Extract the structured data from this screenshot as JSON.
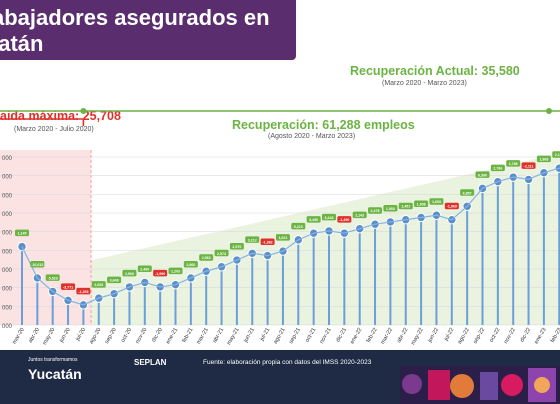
{
  "header": {
    "title_line1": "abajadores asegurados en",
    "title_line2": "catán"
  },
  "annotations": {
    "recuperacion_actual": "Recuperación Actual: 35,580",
    "recuperacion_actual_period": "(Marzo 2020 - Marzo 2023)",
    "caida_maxima": "aida máxima: 25,708",
    "caida_maxima_period": "(Marzo 2020 - Julio 2020)",
    "recuperacion": "Recuperación: 61,288 empleos",
    "recuperacion_period": "(Agosto 2020 - Marzo 2023)"
  },
  "footer": {
    "source": "Fuente: elaboración propia con datos del IMSS 2020-2023",
    "logo1_small": "Juntos transformamos",
    "logo1": "Yucatán",
    "logo2": "SEPLAN"
  },
  "colors": {
    "purple": "#5a2d6e",
    "green": "#6bb443",
    "red": "#e0302a",
    "blue": "#5b8fc9",
    "navy": "#1f2a44"
  },
  "chart_data": {
    "type": "line",
    "categories": [
      "mar-20",
      "abr-20",
      "may-20",
      "jun-20",
      "jul-20",
      "ago-20",
      "sep-20",
      "oct-20",
      "nov-20",
      "dic-20",
      "ene-21",
      "feb-21",
      "mar-21",
      "abr-21",
      "may-21",
      "jun-21",
      "jul-21",
      "ago-21",
      "sep-21",
      "oct-21",
      "nov-21",
      "dic-21",
      "ene-22",
      "feb-22",
      "mar-22",
      "abr-22",
      "may-22",
      "jun-22",
      "jul-22",
      "ago-22",
      "sep-22",
      "oct-22",
      "nov-22",
      "dic-22",
      "ene-23",
      "feb-23",
      "mar-23"
    ],
    "y_ticks": [
      "000",
      "000",
      "000",
      "000",
      "000",
      "000",
      "000",
      "000",
      "000",
      "000"
    ],
    "values": [
      385,
      371,
      365,
      361,
      359,
      362,
      364,
      367,
      369,
      367,
      368,
      371,
      374,
      376,
      379,
      382,
      381,
      383,
      388,
      391,
      392,
      391,
      393,
      395,
      396,
      397,
      398,
      399,
      397,
      403,
      411,
      414,
      416,
      415,
      418,
      420,
      421
    ],
    "changes": [
      "1,145",
      "-10,612",
      "-5,523",
      "-3,771",
      "-1,253",
      "2,653",
      "3,649",
      "2,900",
      "2,460",
      "-1,990",
      "1,203",
      "2,860",
      "2,963",
      "2,573",
      "2,570",
      "3,212",
      "-1,382",
      "1,621",
      "5,210",
      "3,430",
      "3,243",
      "-1,490",
      "2,143",
      "2,478",
      "1,903",
      "1,451",
      "1,308",
      "1,653",
      "-1,969",
      "6,857",
      "6,390",
      "2,766",
      "1,788",
      "-2,111",
      "1,868",
      "2,102",
      "2,970"
    ],
    "negative_indices": [
      3,
      4,
      9,
      16,
      21,
      28,
      33
    ],
    "ylim": [
      350,
      425
    ],
    "grid": true
  }
}
